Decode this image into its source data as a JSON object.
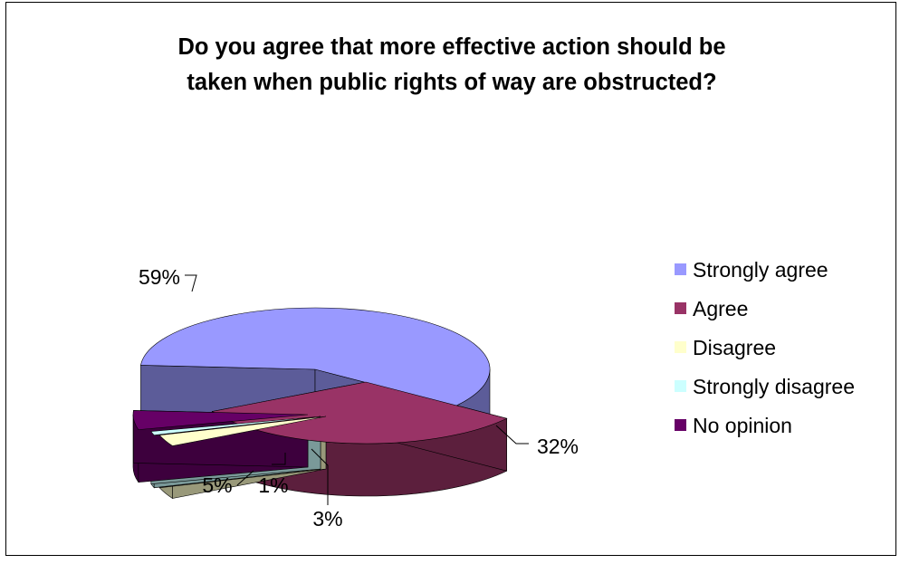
{
  "chart_data": {
    "type": "pie",
    "title_lines": [
      "Do you agree that more effective action should be",
      "taken when public rights of way are obstructed?"
    ],
    "categories": [
      "Strongly agree",
      "Agree",
      "Disagree",
      "Strongly disagree",
      "No opinion"
    ],
    "values": [
      59,
      32,
      3,
      1,
      5
    ],
    "data_labels": [
      "59%",
      "32%",
      "3%",
      "1%",
      "5%"
    ],
    "colors": [
      "#9999ff",
      "#993366",
      "#ffffcc",
      "#ccffff",
      "#660066"
    ],
    "side_colors": [
      "#5c5c99",
      "#5c1f3d",
      "#99997a",
      "#7a9999",
      "#3d003d"
    ],
    "legend_position": "right",
    "exploded": true,
    "three_d": true
  }
}
